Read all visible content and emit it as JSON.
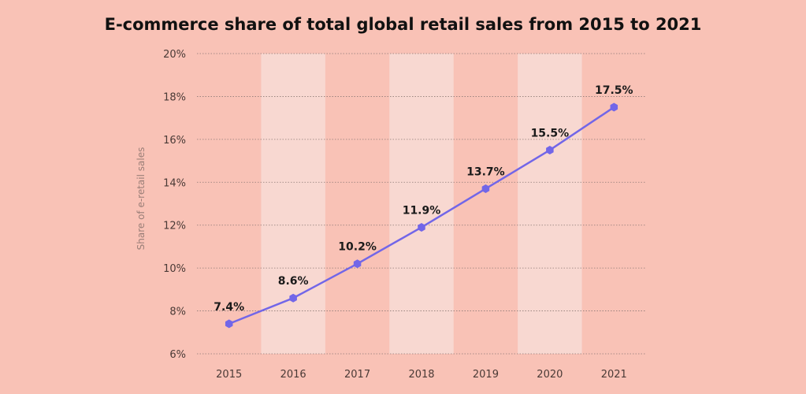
{
  "chart_data": {
    "type": "line",
    "title": "E-commerce share of total global retail sales from 2015 to 2021",
    "xlabel": "",
    "ylabel": "Share of e-retail sales",
    "categories": [
      "2015",
      "2016",
      "2017",
      "2018",
      "2019",
      "2020",
      "2021"
    ],
    "series": [
      {
        "values": [
          7.4,
          8.6,
          10.2,
          11.9,
          13.7,
          15.5,
          17.5
        ],
        "labels": [
          "7.4%",
          "8.6%",
          "10.2%",
          "11.9%",
          "13.7%",
          "15.5%",
          "17.5%"
        ]
      }
    ],
    "ylim": [
      6,
      20
    ],
    "yticks": [
      6,
      8,
      10,
      12,
      14,
      16,
      18,
      20
    ],
    "ytick_labels": [
      "6%",
      "8%",
      "10%",
      "12%",
      "14%",
      "16%",
      "18%",
      "20%"
    ],
    "grid": "horizontal dotted",
    "alternating_column_bands": true,
    "colors": {
      "background": "#f9c2b6",
      "band": "#f8d8d1",
      "line": "#7266e8",
      "gridline": "#8d7a75"
    }
  }
}
